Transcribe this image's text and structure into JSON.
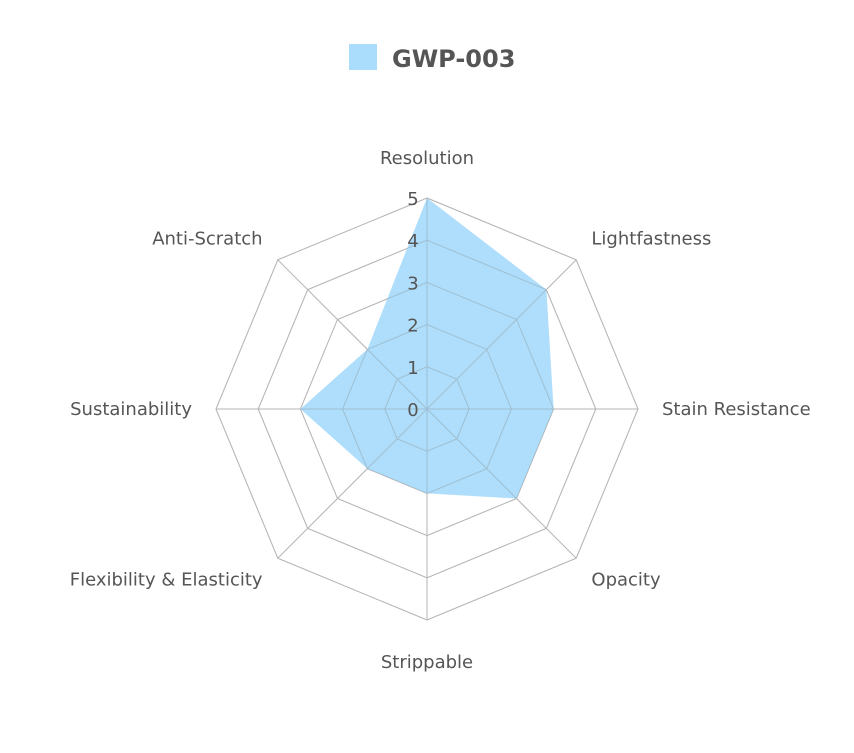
{
  "chart_data": {
    "type": "radar",
    "axes": [
      "Resolution",
      "Lightfastness",
      "Stain Resistance",
      "Opacity",
      "Strippable",
      "Flexibility & Elasticity",
      "Sustainability",
      "Anti-Scratch"
    ],
    "series": [
      {
        "name": "GWP-003",
        "values": [
          5,
          4,
          3,
          3,
          2,
          2,
          3,
          2
        ],
        "color": "#aadcfb"
      }
    ],
    "rlim": [
      0,
      5
    ],
    "ticks": [
      "0",
      "1",
      "2",
      "3",
      "4",
      "5"
    ],
    "grid_color": "#cccccc",
    "legend_position": "top-center"
  }
}
